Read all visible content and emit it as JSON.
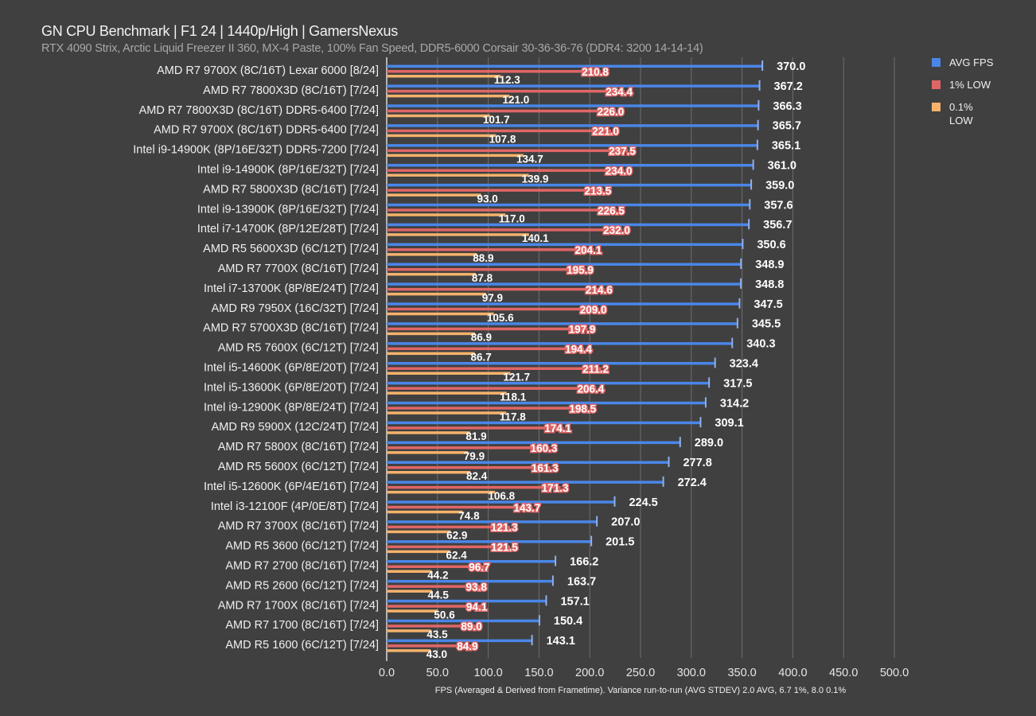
{
  "chart_data": {
    "type": "bar",
    "orientation": "horizontal",
    "title": "GN CPU Benchmark | F1 24 | 1440p/High | GamersNexus",
    "subtitle": "RTX 4090 Strix, Arctic Liquid Freezer II 360, MX-4 Paste, 100% Fan Speed, DDR5-6000 Corsair 30-36-36-76 (DDR4: 3200 14-14-14)",
    "xlabel": "FPS (Averaged & Derived from Frametime). Variance run-to-run (AVG STDEV) 2.0 AVG, 6.7 1%, 8.0 0.1%",
    "xlim": [
      0,
      500
    ],
    "xticks": [
      "0.0",
      "50.0",
      "100.0",
      "150.0",
      "200.0",
      "250.0",
      "300.0",
      "350.0",
      "400.0",
      "450.0",
      "500.0"
    ],
    "grid": true,
    "legend_position": "right",
    "categories": [
      "AMD R7 9700X (8C/16T) Lexar 6000 [8/24]",
      "AMD R7 7800X3D (8C/16T) [7/24]",
      "AMD R7 7800X3D (8C/16T) DDR5-6400 [7/24]",
      "AMD R7 9700X (8C/16T) DDR5-6400 [7/24]",
      "Intel i9-14900K (8P/16E/32T) DDR5-7200 [7/24]",
      "Intel i9-14900K (8P/16E/32T) [7/24]",
      "AMD R7 5800X3D (8C/16T) [7/24]",
      "Intel i9-13900K (8P/16E/32T) [7/24]",
      "Intel i7-14700K (8P/12E/28T) [7/24]",
      "AMD R5 5600X3D (6C/12T) [7/24]",
      "AMD R7 7700X (8C/16T) [7/24]",
      "Intel i7-13700K (8P/8E/24T) [7/24]",
      "AMD R9 7950X (16C/32T) [7/24]",
      "AMD R7 5700X3D (8C/16T) [7/24]",
      "AMD R5 7600X (6C/12T) [7/24]",
      "Intel i5-14600K (6P/8E/20T) [7/24]",
      "Intel i5-13600K (6P/8E/20T) [7/24]",
      "Intel i9-12900K (8P/8E/24T) [7/24]",
      "AMD R9 5900X (12C/24T) [7/24]",
      "AMD R7 5800X (8C/16T) [7/24]",
      "AMD R5 5600X (6C/12T) [7/24]",
      "Intel i5-12600K (6P/4E/16T) [7/24]",
      "Intel i3-12100F (4P/0E/8T) [7/24]",
      "AMD R7 3700X (8C/16T) [7/24]",
      "AMD R5 3600 (6C/12T) [7/24]",
      "AMD R7 2700 (8C/16T) [7/24]",
      "AMD R5 2600 (6C/12T) [7/24]",
      "AMD R7 1700X (8C/16T) [7/24]",
      "AMD R7 1700 (8C/16T) [7/24]",
      "AMD R5 1600 (6C/12T) [7/24]"
    ],
    "series": [
      {
        "name": "AVG FPS",
        "color": "#4a86e8",
        "values": [
          370.0,
          367.2,
          366.3,
          365.7,
          365.1,
          361.0,
          359.0,
          357.6,
          356.7,
          350.6,
          348.9,
          348.8,
          347.5,
          345.5,
          340.3,
          323.4,
          317.5,
          314.2,
          309.1,
          289.0,
          277.8,
          272.4,
          224.5,
          207.0,
          201.5,
          166.2,
          163.7,
          157.1,
          150.4,
          143.1
        ]
      },
      {
        "name": "1% LOW",
        "color": "#e06666",
        "values": [
          210.8,
          234.4,
          226.0,
          221.0,
          237.5,
          234.0,
          213.5,
          226.5,
          232.0,
          204.1,
          195.9,
          214.6,
          209.0,
          197.9,
          194.4,
          211.2,
          206.4,
          198.5,
          174.1,
          160.3,
          161.3,
          171.3,
          143.7,
          121.3,
          121.5,
          96.7,
          93.8,
          94.1,
          89.0,
          84.9
        ]
      },
      {
        "name": "0.1% LOW",
        "color": "#f6b26b",
        "values": [
          112.3,
          121.0,
          101.7,
          107.8,
          134.7,
          139.9,
          93.0,
          117.0,
          140.1,
          88.9,
          87.8,
          97.9,
          105.6,
          86.9,
          86.7,
          121.7,
          118.1,
          117.8,
          81.9,
          79.9,
          82.4,
          106.8,
          74.8,
          62.9,
          62.4,
          44.2,
          44.5,
          50.6,
          43.5,
          43.0
        ]
      }
    ],
    "legend": [
      "AVG FPS",
      "1% LOW",
      "0.1%",
      "LOW"
    ]
  }
}
